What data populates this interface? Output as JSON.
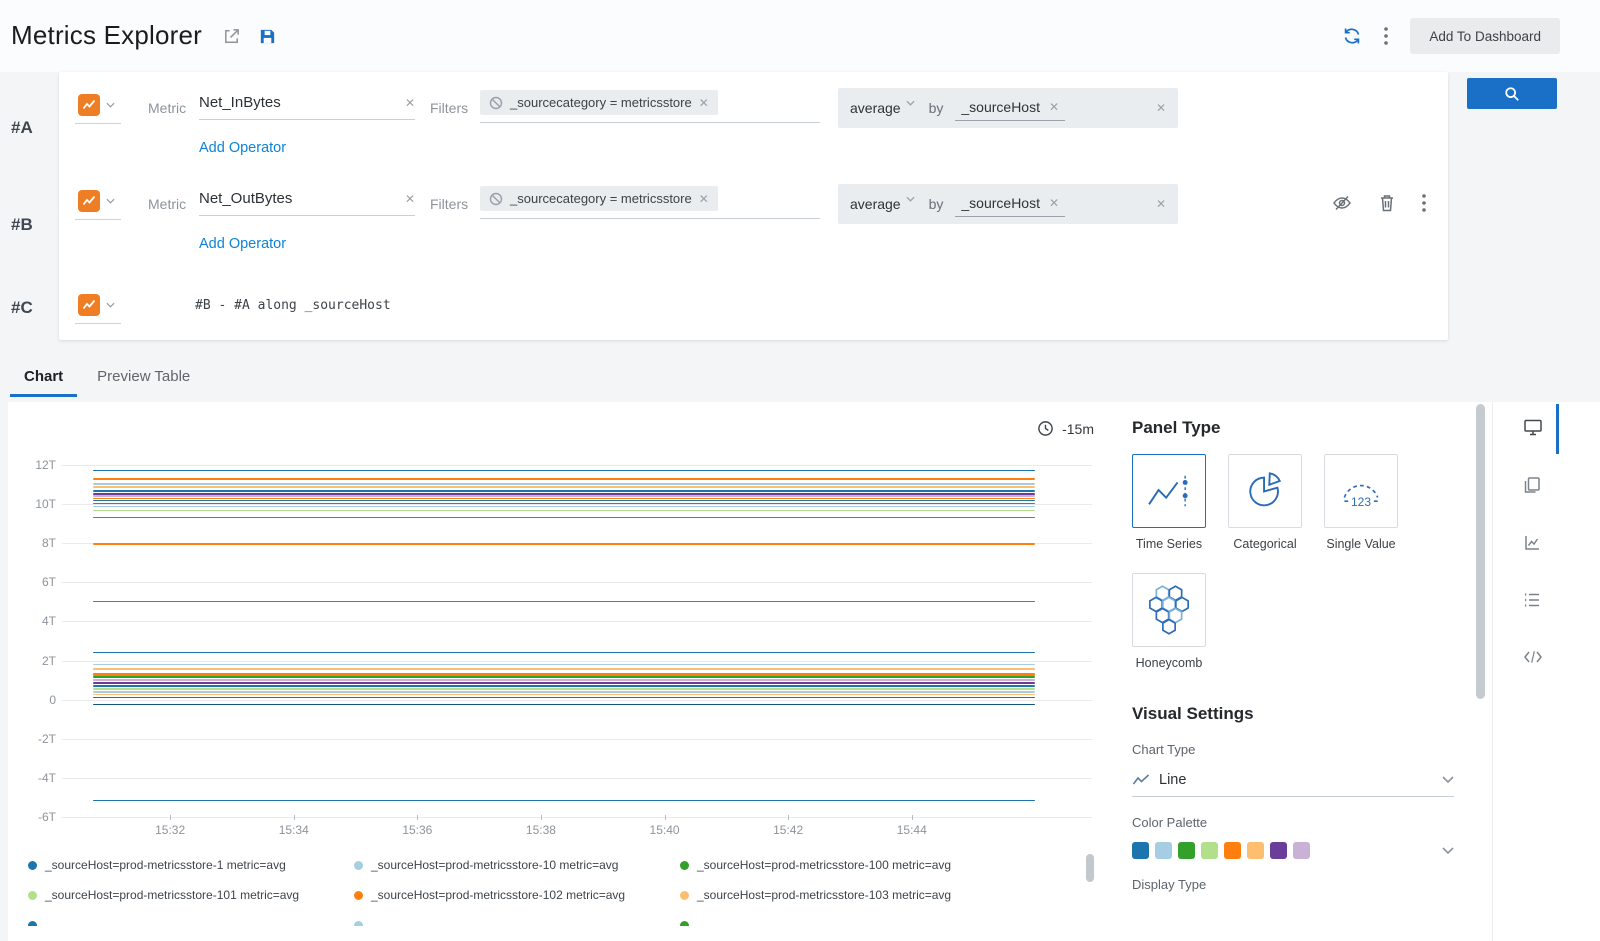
{
  "colors": {
    "accent_blue": "#1a6fc7",
    "link_blue": "#0a84d6",
    "icon_orange": "#ef7d23"
  },
  "header": {
    "title": "Metrics Explorer",
    "add_to_dashboard_label": "Add To Dashboard"
  },
  "query_panel": {
    "rows": [
      {
        "id": "#A",
        "metric_label": "Metric",
        "metric_value": "Net_InBytes",
        "filters_label": "Filters",
        "filter_chip": "_sourcecategory = metricsstore",
        "aggregation": "average",
        "by_label": "by",
        "group_by": "_sourceHost",
        "add_operator_label": "Add Operator"
      },
      {
        "id": "#B",
        "metric_label": "Metric",
        "metric_value": "Net_OutBytes",
        "filters_label": "Filters",
        "filter_chip": "_sourcecategory = metricsstore",
        "aggregation": "average",
        "by_label": "by",
        "group_by": "_sourceHost",
        "add_operator_label": "Add Operator"
      },
      {
        "id": "#C",
        "expression": "#B - #A along _sourceHost"
      }
    ]
  },
  "tabs": [
    {
      "label": "Chart",
      "active": true
    },
    {
      "label": "Preview Table",
      "active": false
    }
  ],
  "chart_data": {
    "type": "line",
    "time_range_label": "-15m",
    "unit": "T",
    "ylim": [
      -7.0,
      12.8
    ],
    "grid": true,
    "y_ticks": [
      {
        "label": "12T",
        "value": 12
      },
      {
        "label": "10T",
        "value": 10
      },
      {
        "label": "8T",
        "value": 8
      },
      {
        "label": "6T",
        "value": 6
      },
      {
        "label": "4T",
        "value": 4
      },
      {
        "label": "2T",
        "value": 2
      },
      {
        "label": "0",
        "value": 0
      },
      {
        "label": "-2T",
        "value": -2
      },
      {
        "label": "-4T",
        "value": -4
      },
      {
        "label": "-6T",
        "value": -6
      }
    ],
    "x_ticks": [
      "15:32",
      "15:34",
      "15:36",
      "15:38",
      "15:40",
      "15:42",
      "15:44"
    ],
    "series": [
      {
        "color": "#1c75ad",
        "value": 11.75
      },
      {
        "color": "#ff7f0e",
        "value": 11.3
      },
      {
        "color": "#a6cee3",
        "value": 11.05
      },
      {
        "color": "#fdbf6f",
        "value": 10.9
      },
      {
        "color": "#1c75ad",
        "value": 10.7
      },
      {
        "color": "#6a3d9a",
        "value": 10.55
      },
      {
        "color": "#cab2d6",
        "value": 10.45
      },
      {
        "color": "#ff7f0e",
        "value": 10.3
      },
      {
        "color": "#1c75ad",
        "value": 10.2
      },
      {
        "color": "#33a02c",
        "value": 10.05
      },
      {
        "color": "#a6cee3",
        "value": 9.9
      },
      {
        "color": "#b2df8a",
        "value": 9.7
      },
      {
        "color": "#33a02c",
        "value": 9.35
      },
      {
        "color": "#ff7f0e",
        "value": 8.0
      },
      {
        "color": "#33a02c",
        "value": 5.05
      },
      {
        "color": "#1c75ad",
        "value": 2.45
      },
      {
        "color": "#a6cee3",
        "value": 1.85
      },
      {
        "color": "#fdbf6f",
        "value": 1.6
      },
      {
        "color": "#ff7f0e",
        "value": 1.35,
        "line_width": 3
      },
      {
        "color": "#33a02c",
        "value": 1.2
      },
      {
        "color": "#cab2d6",
        "value": 1.05
      },
      {
        "color": "#6a3d9a",
        "value": 0.9
      },
      {
        "color": "#1c75ad",
        "value": 0.75
      },
      {
        "color": "#b2df8a",
        "value": 0.6
      },
      {
        "color": "#a6cee3",
        "value": 0.45
      },
      {
        "color": "#fdbf6f",
        "value": 0.3
      },
      {
        "color": "#1c75ad",
        "value": 0.15
      },
      {
        "color": "#16537e",
        "value": -0.2
      },
      {
        "color": "#1c75ad",
        "value": -5.1
      }
    ]
  },
  "legend": {
    "items": [
      {
        "color": "#1c75ad",
        "label": "_sourceHost=prod-metricsstore-1 metric=avg"
      },
      {
        "color": "#a6cee3",
        "label": "_sourceHost=prod-metricsstore-10 metric=avg"
      },
      {
        "color": "#33a02c",
        "label": "_sourceHost=prod-metricsstore-100 metric=avg"
      },
      {
        "color": "#b2df8a",
        "label": "_sourceHost=prod-metricsstore-101 metric=avg"
      },
      {
        "color": "#ff7f0e",
        "label": "_sourceHost=prod-metricsstore-102 metric=avg"
      },
      {
        "color": "#fdbf6f",
        "label": "_sourceHost=prod-metricsstore-103 metric=avg"
      },
      {
        "color": "#1c75ad",
        "label": ""
      },
      {
        "color": "#a6cee3",
        "label": ""
      },
      {
        "color": "#33a02c",
        "label": ""
      }
    ]
  },
  "panel_type": {
    "title": "Panel Type",
    "options": [
      {
        "label": "Time Series",
        "selected": true
      },
      {
        "label": "Categorical",
        "selected": false
      },
      {
        "label": "Single Value",
        "selected": false
      },
      {
        "label": "Honeycomb",
        "selected": false
      }
    ]
  },
  "visual_settings": {
    "title": "Visual Settings",
    "chart_type_label": "Chart Type",
    "chart_type_value": "Line",
    "color_palette_label": "Color Palette",
    "palette": [
      "#1c75ad",
      "#a6cee3",
      "#33a02c",
      "#b2df8a",
      "#ff7f0e",
      "#fdbf6f",
      "#6a3d9a",
      "#cab2d6"
    ],
    "display_type_label": "Display Type"
  }
}
